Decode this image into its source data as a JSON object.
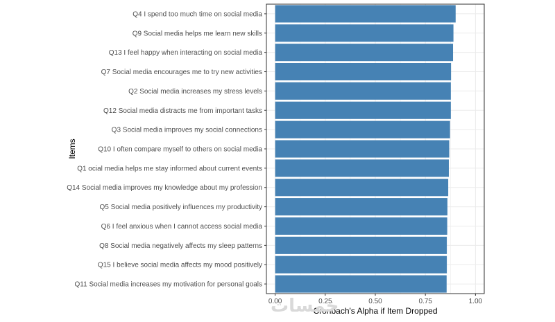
{
  "chart_data": {
    "type": "bar",
    "orientation": "horizontal",
    "categories": [
      "Q4 I spend too much time on social media",
      "Q9 Social media helps me learn new skills",
      "Q13 I feel happy when interacting on social media",
      "Q7 Social media encourages me to try new activities",
      "Q2 Social media increases my stress levels",
      "Q12 Social media distracts me from important tasks",
      "Q3 Social media improves my social connections",
      "Q10 I often compare myself to others on social media",
      "Q1 ocial media helps me stay informed about current events",
      "Q14 Social media improves my knowledge about my profession",
      "Q5 Social media positively influences my productivity",
      "Q6 I feel anxious when I cannot access social media",
      "Q8 Social media negatively affects my sleep patterns",
      "Q15 I believe social media affects my mood positively",
      "Q11 Social media increases my motivation for personal goals"
    ],
    "values": [
      0.901,
      0.89,
      0.888,
      0.878,
      0.877,
      0.877,
      0.873,
      0.869,
      0.867,
      0.864,
      0.86,
      0.859,
      0.857,
      0.857,
      0.856
    ],
    "xlabel": "Cronbach's Alpha if Item Dropped",
    "ylabel": "Items",
    "xlim": [
      -0.04375,
      1.04375
    ],
    "xticks": [
      0.0,
      0.25,
      0.5,
      0.75,
      1.0
    ],
    "xtick_labels": [
      "0.00",
      "0.25",
      "0.50",
      "0.75",
      "1.00"
    ],
    "grid": true,
    "legend": "none",
    "bar_color": "#4682B4",
    "panel_border_color": "#333333",
    "grid_color": "#ebebeb"
  },
  "watermark": "خمسات"
}
